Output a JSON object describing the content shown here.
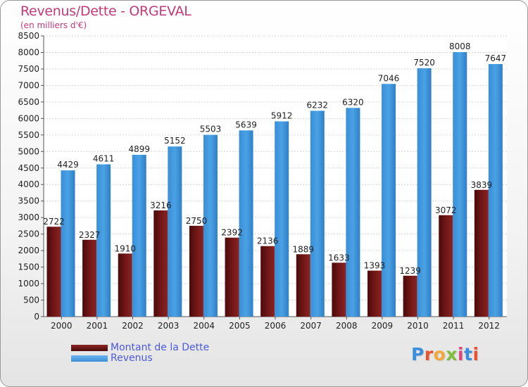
{
  "colors": {
    "dette": "#6e1515",
    "revenus": "#4aa2e4",
    "title": "#c03a7a",
    "legend_text": "#4a5ad8"
  },
  "logo": {
    "text": "Proxiti",
    "letter_colors": [
      "#3b8ede",
      "#e9522c",
      "#f2a73a",
      "#7dbf3c",
      "#e0457a",
      "#3b8ede",
      "#e9522c"
    ]
  },
  "chart_data": {
    "type": "bar",
    "title": "Revenus/Dette - ORGEVAL",
    "subtitle": "(en milliers d'€)",
    "categories": [
      "2000",
      "2001",
      "2002",
      "2003",
      "2004",
      "2005",
      "2006",
      "2007",
      "2008",
      "2009",
      "2010",
      "2011",
      "2012"
    ],
    "series": [
      {
        "name": "Montant de la Dette",
        "values": [
          2722,
          2327,
          1910,
          3216,
          2750,
          2392,
          2136,
          1889,
          1633,
          1393,
          1239,
          3072,
          3839
        ]
      },
      {
        "name": "Revenus",
        "values": [
          4429,
          4611,
          4899,
          5152,
          5503,
          5639,
          5912,
          6232,
          6320,
          7046,
          7520,
          8008,
          7647
        ]
      }
    ],
    "ylim": [
      0,
      8500
    ],
    "yticks": [
      0,
      500,
      1000,
      1500,
      2000,
      2500,
      3000,
      3500,
      4000,
      4500,
      5000,
      5500,
      6000,
      6500,
      7000,
      7500,
      8000,
      8500
    ],
    "grid": true,
    "legend_position": "bottom-left"
  }
}
